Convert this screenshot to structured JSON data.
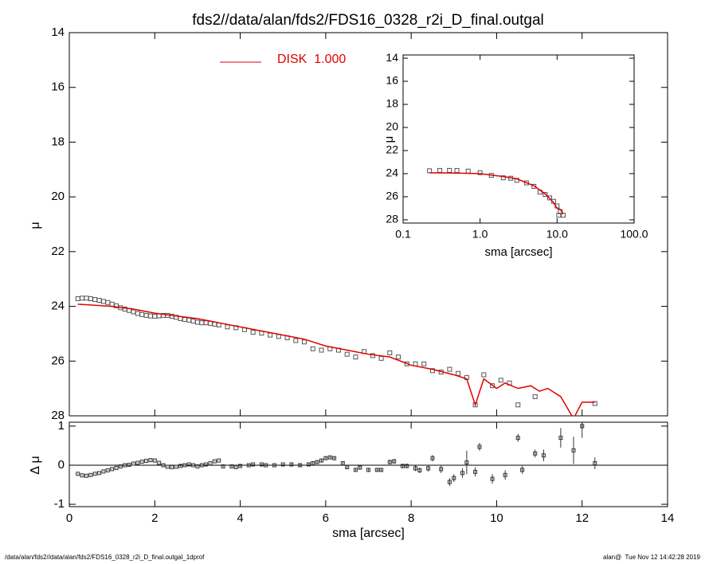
{
  "chart_data": [
    {
      "type": "scatter",
      "title": "fds2//data/alan/fds2/FDS16_0328_r2i_D_final.outgal",
      "ylabel": "μ",
      "xlim": [
        0,
        14
      ],
      "xticks": [
        0,
        2,
        4,
        6,
        8,
        10,
        12,
        14
      ],
      "ylim": [
        28,
        14
      ],
      "yticks": [
        14,
        16,
        18,
        20,
        22,
        24,
        26,
        28
      ],
      "series": [
        {
          "type": "scatter",
          "color": "#555555",
          "x": [
            0.2,
            0.3,
            0.4,
            0.5,
            0.6,
            0.7,
            0.8,
            0.9,
            1.0,
            1.1,
            1.2,
            1.3,
            1.4,
            1.5,
            1.6,
            1.7,
            1.8,
            1.9,
            2.0,
            2.1,
            2.2,
            2.3,
            2.4,
            2.5,
            2.6,
            2.7,
            2.8,
            2.9,
            3.0,
            3.1,
            3.2,
            3.3,
            3.4,
            3.5,
            3.7,
            3.9,
            4.1,
            4.3,
            4.5,
            4.7,
            4.9,
            5.1,
            5.3,
            5.5,
            5.7,
            5.9,
            6.1,
            6.3,
            6.5,
            6.7,
            6.9,
            7.1,
            7.3,
            7.5,
            7.7,
            7.9,
            8.1,
            8.3,
            8.5,
            8.7,
            8.9,
            9.1,
            9.3,
            9.5,
            9.7,
            9.9,
            10.1,
            10.3,
            10.5,
            10.9,
            12.3
          ],
          "values": [
            23.72,
            23.7,
            23.7,
            23.72,
            23.75,
            23.78,
            23.82,
            23.86,
            23.92,
            23.98,
            24.05,
            24.1,
            24.15,
            24.2,
            24.26,
            24.3,
            24.33,
            24.35,
            24.36,
            24.35,
            24.33,
            24.33,
            24.36,
            24.4,
            24.45,
            24.48,
            24.5,
            24.54,
            24.58,
            24.6,
            24.6,
            24.62,
            24.65,
            24.68,
            24.75,
            24.78,
            24.85,
            24.95,
            24.98,
            25.05,
            25.1,
            25.15,
            25.25,
            25.3,
            25.55,
            25.6,
            25.55,
            25.6,
            25.75,
            25.85,
            25.65,
            25.8,
            25.9,
            25.7,
            25.85,
            26.1,
            26.1,
            26.1,
            26.35,
            26.4,
            26.3,
            26.45,
            26.6,
            27.6,
            26.5,
            26.9,
            26.7,
            26.8,
            27.6,
            27.3,
            27.55
          ]
        },
        {
          "type": "line",
          "name": "DISK  1.000",
          "color": "#e00000",
          "x": [
            0.2,
            0.5,
            1.0,
            1.5,
            2.0,
            2.5,
            3.0,
            3.5,
            4.0,
            4.5,
            5.0,
            5.5,
            6.0,
            6.5,
            7.0,
            7.5,
            8.0,
            8.5,
            9.0,
            9.3,
            9.5,
            9.7,
            10.0,
            10.2,
            10.5,
            10.8,
            11.0,
            11.2,
            11.5,
            11.8,
            12.0,
            12.3
          ],
          "values": [
            23.92,
            23.95,
            24.0,
            24.1,
            24.25,
            24.35,
            24.45,
            24.6,
            24.75,
            24.9,
            25.05,
            25.2,
            25.45,
            25.6,
            25.75,
            25.85,
            26.15,
            26.3,
            26.5,
            26.65,
            27.6,
            26.65,
            27.0,
            26.8,
            27.0,
            26.9,
            27.1,
            27.0,
            27.3,
            28.1,
            27.5,
            27.5
          ]
        }
      ]
    },
    {
      "type": "errorbar",
      "xlabel": "sma [arcsec]",
      "ylabel": "Δ μ",
      "xlim": [
        0,
        14
      ],
      "xticks": [
        0,
        2,
        4,
        6,
        8,
        10,
        12,
        14
      ],
      "ylim": [
        -1.06,
        1.1
      ],
      "yticks": [
        -1,
        0,
        1
      ],
      "series": [
        {
          "color": "#333333",
          "x": [
            0.2,
            0.3,
            0.4,
            0.5,
            0.6,
            0.7,
            0.8,
            0.9,
            1.0,
            1.1,
            1.2,
            1.3,
            1.4,
            1.5,
            1.6,
            1.7,
            1.8,
            1.9,
            2.0,
            2.1,
            2.2,
            2.3,
            2.4,
            2.5,
            2.6,
            2.7,
            2.8,
            2.9,
            3.0,
            3.1,
            3.2,
            3.3,
            3.4,
            3.5,
            3.6,
            3.8,
            3.9,
            4.0,
            4.2,
            4.3,
            4.5,
            4.6,
            4.8,
            5.0,
            5.2,
            5.4,
            5.6,
            5.7,
            5.8,
            5.9,
            6.0,
            6.1,
            6.2,
            6.4,
            6.5,
            6.7,
            6.8,
            7.0,
            7.2,
            7.3,
            7.5,
            7.6,
            7.8,
            7.9,
            8.1,
            8.2,
            8.4,
            8.5,
            8.7,
            8.9,
            9.0,
            9.2,
            9.3,
            9.5,
            9.6,
            9.9,
            10.2,
            10.5,
            10.6,
            10.9,
            11.1,
            11.5,
            11.8,
            12.0,
            12.3
          ],
          "values": [
            -0.22,
            -0.26,
            -0.27,
            -0.25,
            -0.22,
            -0.2,
            -0.16,
            -0.13,
            -0.1,
            -0.07,
            -0.03,
            0,
            0.01,
            0.04,
            0.06,
            0.09,
            0.11,
            0.13,
            0.12,
            0.06,
            0,
            -0.04,
            -0.05,
            -0.04,
            -0.02,
            0,
            0.02,
            0,
            -0.03,
            0,
            0.02,
            0.05,
            0.1,
            0.12,
            -0.03,
            -0.03,
            -0.05,
            -0.02,
            0,
            0.02,
            0.02,
            0,
            0,
            0.02,
            0.02,
            0,
            0.02,
            0.05,
            0.08,
            0.12,
            0.18,
            0.2,
            0.18,
            0.05,
            -0.05,
            -0.12,
            -0.06,
            -0.12,
            -0.12,
            -0.12,
            0.08,
            0.1,
            -0.02,
            -0.02,
            -0.08,
            -0.13,
            -0.08,
            0.18,
            -0.1,
            -0.43,
            -0.33,
            -0.2,
            0.07,
            -0.17,
            0.47,
            -0.35,
            -0.25,
            0.7,
            -0.12,
            0.3,
            0.25,
            0.7,
            0.38,
            1.0,
            0.05
          ],
          "errors": [
            0.01,
            0.01,
            0.01,
            0.01,
            0.01,
            0.01,
            0.01,
            0.01,
            0.01,
            0.01,
            0.01,
            0.01,
            0.01,
            0.01,
            0.01,
            0.01,
            0.01,
            0.01,
            0.01,
            0.01,
            0.01,
            0.01,
            0.01,
            0.01,
            0.01,
            0.01,
            0.01,
            0.01,
            0.01,
            0.01,
            0.01,
            0.01,
            0.01,
            0.01,
            0.02,
            0.02,
            0.02,
            0.02,
            0.02,
            0.02,
            0.02,
            0.02,
            0.02,
            0.02,
            0.03,
            0.03,
            0.03,
            0.03,
            0.03,
            0.03,
            0.04,
            0.04,
            0.04,
            0.04,
            0.04,
            0.05,
            0.05,
            0.05,
            0.05,
            0.05,
            0.06,
            0.06,
            0.06,
            0.06,
            0.07,
            0.07,
            0.08,
            0.08,
            0.1,
            0.1,
            0.1,
            0.12,
            0.3,
            0.12,
            0.1,
            0.12,
            0.12,
            0.1,
            0.1,
            0.1,
            0.15,
            0.25,
            0.35,
            0.3,
            0.15
          ]
        }
      ]
    },
    {
      "type": "scatter",
      "xlabel": "sma [arcsec]",
      "ylabel": "μ",
      "xscale": "log",
      "xlim": [
        0.1,
        100
      ],
      "xticks": [
        {
          "value": 0.1,
          "label": "0.1"
        },
        {
          "value": 1,
          "label": "1.0"
        },
        {
          "value": 10,
          "label": "10.0"
        },
        {
          "value": 100,
          "label": "100.0"
        }
      ],
      "ylim": [
        28.28,
        13.72
      ],
      "yticks": [
        14,
        16,
        18,
        20,
        22,
        24,
        26,
        28
      ],
      "series": [
        {
          "type": "scatter",
          "color": "#555555",
          "x": [
            0.22,
            0.3,
            0.4,
            0.5,
            0.7,
            1.0,
            1.4,
            2.0,
            2.5,
            3.0,
            4.0,
            5.0,
            6.0,
            7.0,
            8.0,
            9.0,
            10.0,
            10.5,
            11.0,
            12.0
          ],
          "values": [
            23.75,
            23.72,
            23.72,
            23.73,
            23.78,
            23.92,
            24.15,
            24.36,
            24.4,
            24.58,
            24.8,
            25.1,
            25.6,
            25.8,
            26.1,
            26.4,
            26.8,
            27.6,
            27.3,
            27.6
          ]
        },
        {
          "type": "line",
          "color": "#e00000",
          "x": [
            0.22,
            0.5,
            1.0,
            2.0,
            3.0,
            5.0,
            7.0,
            9.0,
            10.0,
            11.0,
            12.0
          ],
          "values": [
            23.92,
            23.95,
            24.0,
            24.25,
            24.45,
            25.05,
            25.75,
            26.5,
            27.0,
            27.1,
            27.5
          ]
        }
      ]
    }
  ],
  "footer_left": "/data/alan/fds2//data/alan/fds2/FDS16_0328_r2i_D_final.outgal_1dprof",
  "footer_right": "alan@  Tue Nov 12 14:42:28 2019"
}
